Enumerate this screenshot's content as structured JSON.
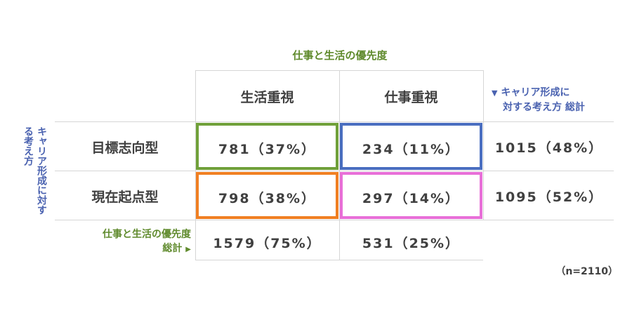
{
  "header_title": "仕事と生活の優先度",
  "columns": [
    "生活重視",
    "仕事重視"
  ],
  "rows": [
    "目標志向型",
    "現在起点型"
  ],
  "row_axis_label": "キャリア形成に対する考え方",
  "row_total_header": {
    "marker": "▼",
    "line1": "キャリア形成に",
    "line2": "対する考え方 総計"
  },
  "cells": [
    [
      "781（37%）",
      "234（11%）"
    ],
    [
      "798（38%）",
      "297（14%）"
    ]
  ],
  "row_totals": [
    "1015（48%）",
    "1095（52%）"
  ],
  "col_total_label": {
    "line1": "仕事と生活の優先度",
    "line2": "総計",
    "marker": "▶"
  },
  "col_totals": [
    "1579（75%）",
    "531（25%）"
  ],
  "n_label": "（n=2110）",
  "colors": {
    "cell_1_1": "#70a03a",
    "cell_1_2": "#4a6ec0",
    "cell_2_1": "#f07f22",
    "cell_2_2": "#e86fd8",
    "green_text": "#5f8a2c",
    "blue_text": "#4a62b0"
  }
}
